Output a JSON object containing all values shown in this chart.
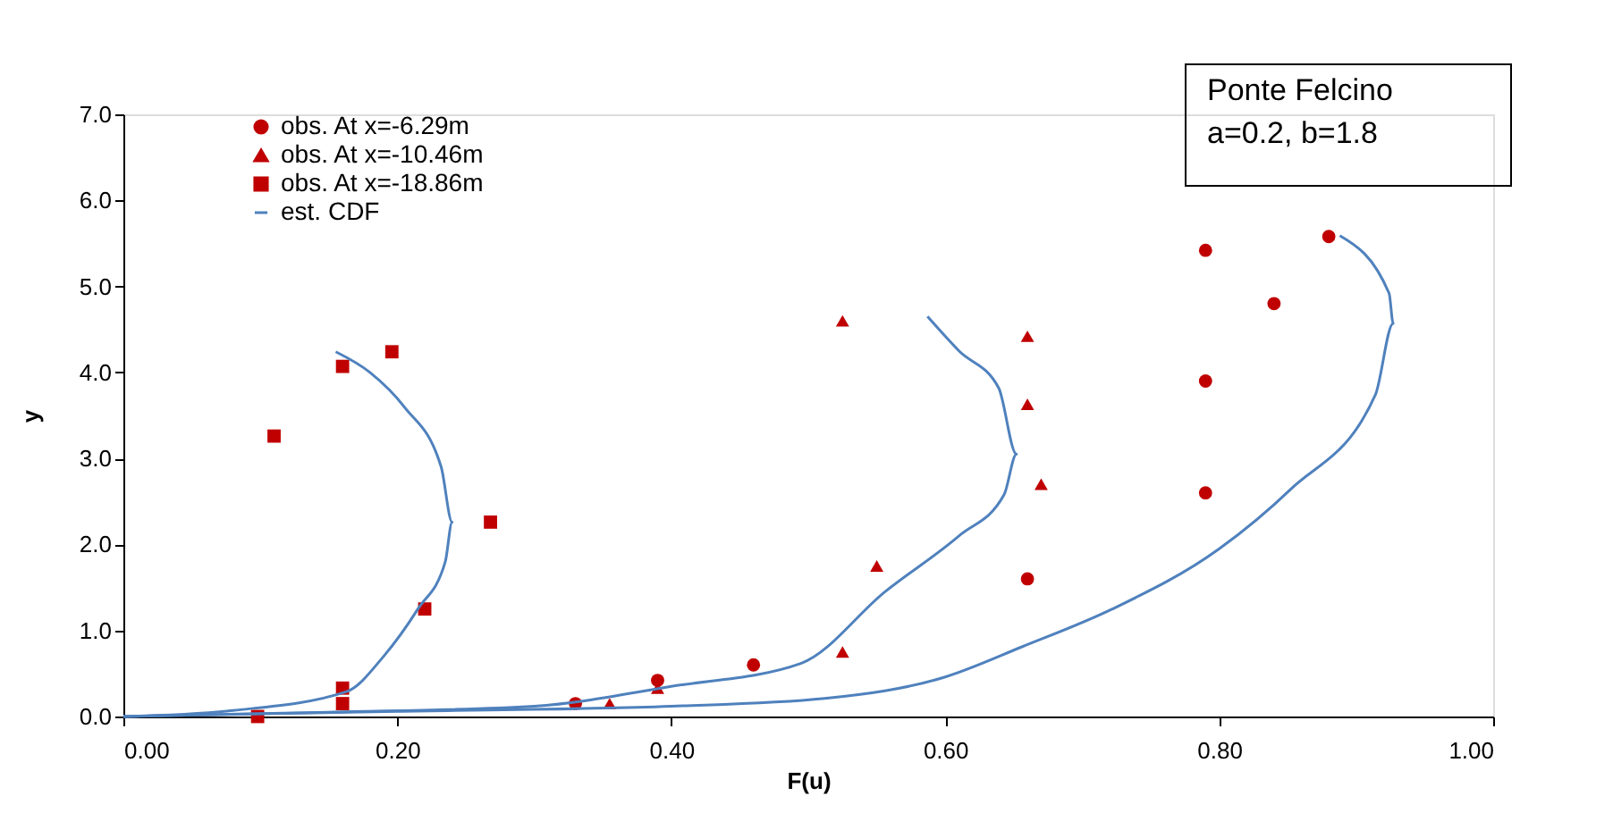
{
  "chart_data": {
    "type": "scatter",
    "xlabel": "F(u)",
    "ylabel": "y",
    "annotations": [
      "Ponte Felcino",
      "a=0.2, b=1.8"
    ],
    "xlim": [
      0,
      1
    ],
    "ylim": [
      0,
      7
    ],
    "xticks": [
      {
        "value": 0,
        "label": "0.00"
      },
      {
        "value": 0.2,
        "label": "0.20"
      },
      {
        "value": 0.4,
        "label": "0.40"
      },
      {
        "value": 0.6,
        "label": "0.60"
      },
      {
        "value": 0.8,
        "label": "0.80"
      },
      {
        "value": 1,
        "label": "1.00"
      }
    ],
    "yticks": [
      {
        "value": 0,
        "label": "0.0"
      },
      {
        "value": 1,
        "label": "1.0"
      },
      {
        "value": 2,
        "label": "2.0"
      },
      {
        "value": 3,
        "label": "3.0"
      },
      {
        "value": 4,
        "label": "4.0"
      },
      {
        "value": 5,
        "label": "5.0"
      },
      {
        "value": 6,
        "label": "6.0"
      },
      {
        "value": 7,
        "label": "7.0"
      }
    ],
    "grid": false,
    "legend": "top left",
    "series": [
      {
        "name": "obs. At x=-6.29m",
        "marker": "circle",
        "color": "#c00000",
        "x": [
          0.88,
          0.79,
          0.84,
          0.79,
          0.79,
          0.66,
          0.46,
          0.39,
          0.33
        ],
        "values": [
          5.58,
          5.42,
          4.8,
          3.9,
          2.6,
          1.6,
          0.6,
          0.42,
          0.15
        ]
      },
      {
        "name": "obs. At x=-10.46m",
        "marker": "triangle",
        "color": "#c00000",
        "x": [
          0.525,
          0.66,
          0.66,
          0.67,
          0.55,
          0.525,
          0.39,
          0.355
        ],
        "values": [
          4.6,
          4.42,
          3.63,
          2.7,
          1.75,
          0.75,
          0.33,
          0.15
        ]
      },
      {
        "name": "obs. At x=-18.86m",
        "marker": "square",
        "color": "#c00000",
        "x": [
          0.11,
          0.16,
          0.196,
          0.268,
          0.22,
          0.16,
          0.16,
          0.098
        ],
        "values": [
          3.26,
          4.07,
          4.24,
          2.26,
          1.25,
          0.33,
          0.15,
          0.0
        ]
      },
      {
        "name": "est. CDF",
        "type": "line",
        "color": "#4f81bd",
        "x": [
          0,
          0.08,
          0.163,
          0.19,
          0.215,
          0.235,
          0.24,
          0.232,
          0.205,
          0.18,
          0.155
        ],
        "values": [
          0,
          0.07,
          0.29,
          0.7,
          1.25,
          1.8,
          2.26,
          2.9,
          3.6,
          4.0,
          4.24
        ]
      },
      {
        "type": "line",
        "color": "#4f81bd",
        "x": [
          0,
          0.15,
          0.3,
          0.4,
          0.495,
          0.556,
          0.61,
          0.643,
          0.652,
          0.639,
          0.61,
          0.587
        ],
        "values": [
          0,
          0.05,
          0.12,
          0.35,
          0.62,
          1.45,
          2.1,
          2.58,
          3.05,
          3.82,
          4.25,
          4.65
        ]
      },
      {
        "type": "line",
        "color": "#4f81bd",
        "x": [
          0,
          0.2,
          0.4,
          0.512,
          0.6,
          0.656,
          0.722,
          0.8,
          0.852,
          0.914,
          0.927,
          0.924,
          0.888
        ],
        "values": [
          0,
          0.06,
          0.12,
          0.21,
          0.46,
          0.81,
          1.25,
          1.95,
          2.64,
          3.74,
          4.57,
          4.92,
          5.59
        ]
      }
    ]
  }
}
